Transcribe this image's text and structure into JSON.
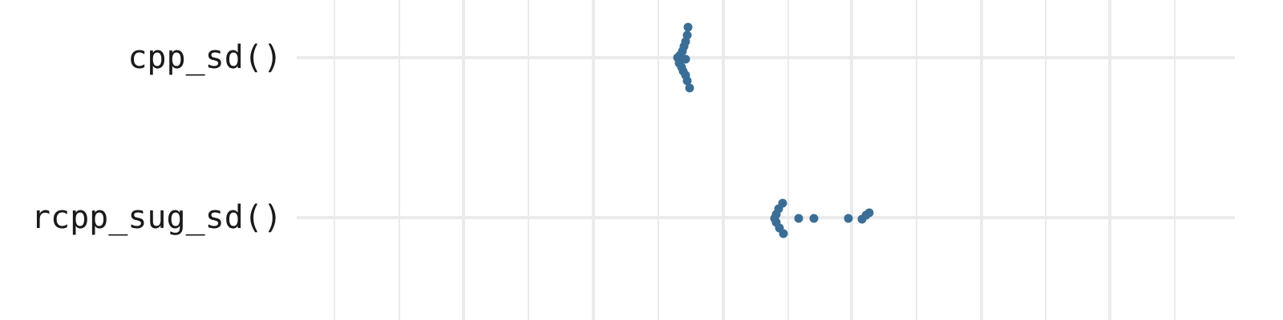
{
  "chart_data": {
    "type": "scatter",
    "title": "",
    "xlabel": "",
    "ylabel": "",
    "categories": [
      "cpp_sd()",
      "rcpp_sug_sd()"
    ],
    "grid": true,
    "point_color": "#3b6e96",
    "gridline_color": "#ebebeb",
    "series": [
      {
        "category": "cpp_sd()",
        "points": [
          {
            "x": 858,
            "y": 0.38
          },
          {
            "x": 857,
            "y": 0.28
          },
          {
            "x": 855,
            "y": 0.2
          },
          {
            "x": 853,
            "y": 0.14
          },
          {
            "x": 851,
            "y": 0.08
          },
          {
            "x": 848,
            "y": 0.03
          },
          {
            "x": 845,
            "y": 0.0
          },
          {
            "x": 849,
            "y": -0.01
          },
          {
            "x": 855,
            "y": -0.02
          },
          {
            "x": 847,
            "y": -0.07
          },
          {
            "x": 850,
            "y": -0.12
          },
          {
            "x": 852,
            "y": -0.17
          },
          {
            "x": 855,
            "y": -0.22
          },
          {
            "x": 857,
            "y": -0.29
          },
          {
            "x": 860,
            "y": -0.38
          }
        ]
      },
      {
        "category": "rcpp_sug_sd()",
        "points": [
          {
            "x": 976,
            "y": 0.18
          },
          {
            "x": 971,
            "y": 0.11
          },
          {
            "x": 968,
            "y": 0.04
          },
          {
            "x": 966,
            "y": -0.01
          },
          {
            "x": 968,
            "y": -0.06
          },
          {
            "x": 972,
            "y": -0.13
          },
          {
            "x": 977,
            "y": -0.2
          },
          {
            "x": 996,
            "y": -0.01
          },
          {
            "x": 1015,
            "y": -0.01
          },
          {
            "x": 1058,
            "y": -0.01
          },
          {
            "x": 1075,
            "y": -0.02
          },
          {
            "x": 1080,
            "y": 0.03
          },
          {
            "x": 1084,
            "y": 0.06
          }
        ]
      }
    ]
  }
}
